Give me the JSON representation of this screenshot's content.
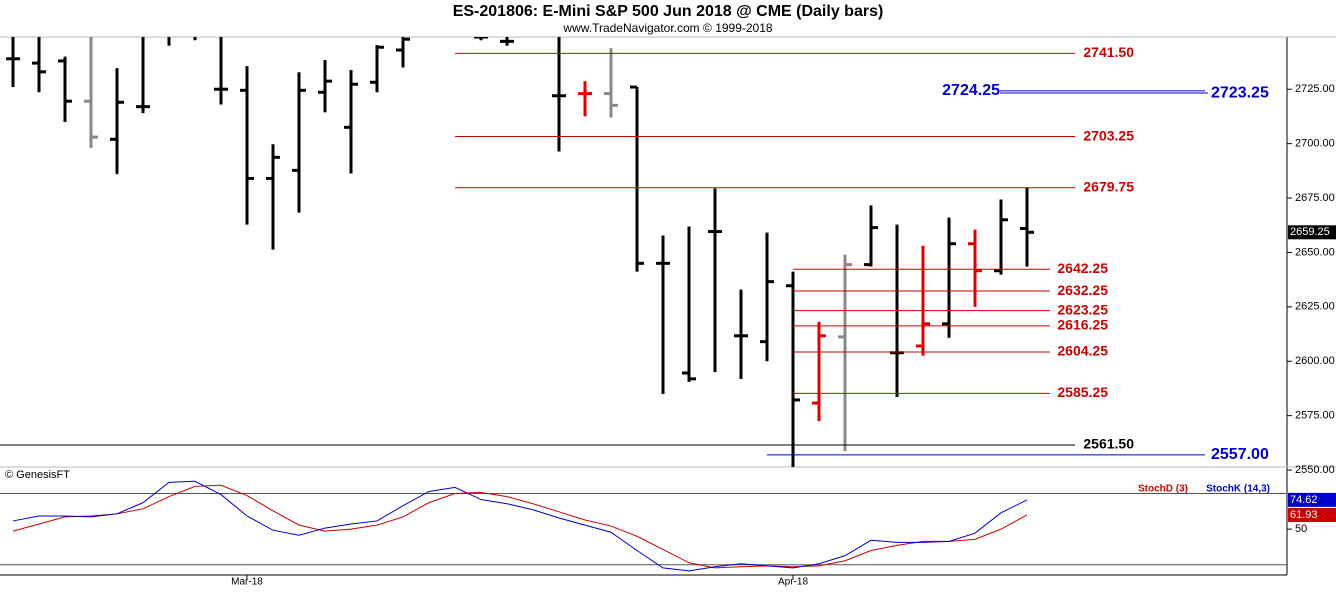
{
  "chart_data": {
    "type": "ohlc",
    "title": "ES-201806:  E-Mini S&P 500 Jun 2018 @ CME  (Daily bars)",
    "subtitle": "www.TradeNavigator.com © 1999-2018",
    "credit": "© GenesisFT",
    "xticks": [
      {
        "value": 9,
        "label": "Mar-18"
      },
      {
        "value": 30,
        "label": "Apr-18"
      }
    ],
    "ylim": [
      2551.4,
      2749
    ],
    "yticks": [
      {
        "value": 2550,
        "label": "2550.00"
      },
      {
        "value": 2575,
        "label": "2575.00"
      },
      {
        "value": 2600,
        "label": "2600.00"
      },
      {
        "value": 2625,
        "label": "2625.00"
      },
      {
        "value": 2650,
        "label": "2650.00"
      },
      {
        "value": 2675,
        "label": "2675.00"
      },
      {
        "value": 2700,
        "label": "2700.00"
      },
      {
        "value": 2725,
        "label": "2725.00"
      }
    ],
    "ohlc": {
      "open": [
        2739,
        2737,
        2738,
        2719.5,
        2702,
        2717,
        2750,
        2750,
        2725,
        2724.5,
        2684,
        2687.7,
        2723.6,
        2707.5,
        2728.2,
        2743,
        null,
        null,
        2749,
        2747,
        null,
        2722,
        2723,
        2723,
        2726,
        2645,
        2594.6,
        2659.6,
        2611.7,
        2609,
        2634.7,
        2580.8,
        2611.2,
        2644.4,
        2603.9,
        2607,
        2617.2,
        2654,
        2641.6,
        2661
      ],
      "high": [
        2755,
        2755,
        2740,
        2755,
        2734.7,
        2755,
        2755,
        2755,
        2755,
        2735.6,
        2699.7,
        2732.8,
        2738.4,
        2733.8,
        2745.3,
        2749,
        null,
        null,
        2755,
        2755,
        null,
        2755,
        2728.7,
        2743.9,
        2726,
        2657.8,
        2661.9,
        2679.4,
        2632.9,
        2659.1,
        2641.2,
        2618.1,
        2649,
        2671.6,
        2662.8,
        2653.1,
        2666,
        2660.5,
        2674.3,
        2679.9
      ],
      "low": [
        2726,
        2723.6,
        2710,
        2698,
        2686,
        2714,
        2745,
        2747.5,
        2718,
        2662.8,
        2651.3,
        2668.3,
        2714.4,
        2686.3,
        2723.6,
        2735,
        null,
        null,
        2747.5,
        2745,
        null,
        2696.4,
        2712.6,
        2712,
        2641.2,
        2585,
        2590.5,
        2595,
        2591.9,
        2600,
        2550.9,
        2572.5,
        2558.7,
        2643.5,
        2583.6,
        2602.5,
        2610.8,
        2625,
        2639.8,
        2643.5
      ],
      "close": [
        2739,
        2733,
        2719.5,
        2703,
        2719,
        2717,
        2750,
        2750,
        2725,
        2684,
        2693.7,
        2724.5,
        2728.7,
        2727.3,
        2744.3,
        2748,
        null,
        null,
        2749,
        2747,
        null,
        2722,
        2723,
        2717.6,
        2645,
        2645,
        2591.9,
        2659.6,
        2611.7,
        2636.6,
        2582.2,
        2611.7,
        2644.4,
        2661.4,
        2603.9,
        2617.2,
        2654,
        2641.6,
        2665,
        2659.25
      ],
      "colors": [
        "#000000",
        "#000000",
        "#000000",
        "#888888",
        "#000000",
        "#000000",
        "#000000",
        "#000000",
        "#000000",
        "#000000",
        "#000000",
        "#000000",
        "#000000",
        "#000000",
        "#000000",
        "#000000",
        "#000000",
        "#000000",
        "#000000",
        "#000000",
        "#000000",
        "#000000",
        "#e00000",
        "#888888",
        "#000000",
        "#000000",
        "#000000",
        "#000000",
        "#000000",
        "#000000",
        "#000000",
        "#e00000",
        "#888888",
        "#000000",
        "#000000",
        "#e00000",
        "#000000",
        "#e00000",
        "#000000",
        "#000000"
      ]
    },
    "levels": [
      {
        "value": 2741.5,
        "label": "2741.50",
        "color": "#cc0000"
      },
      {
        "value": 2724.25,
        "label": "2724.25",
        "color": "#0000cc"
      },
      {
        "value": 2723.25,
        "label": "2723.25",
        "color": "#0000cc"
      },
      {
        "value": 2703.25,
        "label": "2703.25",
        "color": "#cc0000"
      },
      {
        "value": 2679.75,
        "label": "2679.75",
        "color": "#cc0000"
      },
      {
        "value": 2642.25,
        "label": "2642.25",
        "color": "#cc0000"
      },
      {
        "value": 2632.25,
        "label": "2632.25",
        "color": "#cc0000"
      },
      {
        "value": 2623.25,
        "label": "2623.25",
        "color": "#cc0000"
      },
      {
        "value": 2616.25,
        "label": "2616.25",
        "color": "#cc0000"
      },
      {
        "value": 2604.25,
        "label": "2604.25",
        "color": "#cc0000"
      },
      {
        "value": 2585.25,
        "label": "2585.25",
        "color": "#cc0000"
      },
      {
        "value": 2561.5,
        "label": "2561.50",
        "color": "#000000"
      },
      {
        "value": 2557,
        "label": "2557.00",
        "color": "#0000cc"
      }
    ],
    "stochastic": {
      "ylim": [
        11.4,
        102.3
      ],
      "yticks": [
        50
      ],
      "levels": [
        20,
        80
      ],
      "series": [
        {
          "name": "StochD (3)",
          "color": "#cc0000",
          "values": [
            48.3,
            54.3,
            60.3,
            61.1,
            62.9,
            67.1,
            77.4,
            86,
            86.9,
            78.3,
            65.4,
            53.4,
            48.3,
            50,
            53.4,
            60.3,
            72.3,
            80,
            80.9,
            77.4,
            71.4,
            64.6,
            57.7,
            52.6,
            44,
            32.9,
            21.7,
            17.4,
            18.3,
            19.1,
            18.3,
            19.1,
            23.4,
            32,
            36.3,
            39.7,
            39.7,
            41.4,
            50,
            61.93
          ]
        },
        {
          "name": "StochK (14,3)",
          "color": "#0000cc",
          "values": [
            56.9,
            61.1,
            61.1,
            60.3,
            62.9,
            72.3,
            89.4,
            90.3,
            79.1,
            61.1,
            49.1,
            44.9,
            50.9,
            54.3,
            56.9,
            69.7,
            81.7,
            85.1,
            74.9,
            71.4,
            66.3,
            59.4,
            53.4,
            47.4,
            32,
            17.4,
            14.9,
            18.3,
            20.9,
            19.1,
            17.4,
            20.9,
            27.7,
            40.6,
            38.9,
            38.9,
            39.7,
            46.6,
            63.7,
            74.62
          ]
        }
      ]
    }
  }
}
